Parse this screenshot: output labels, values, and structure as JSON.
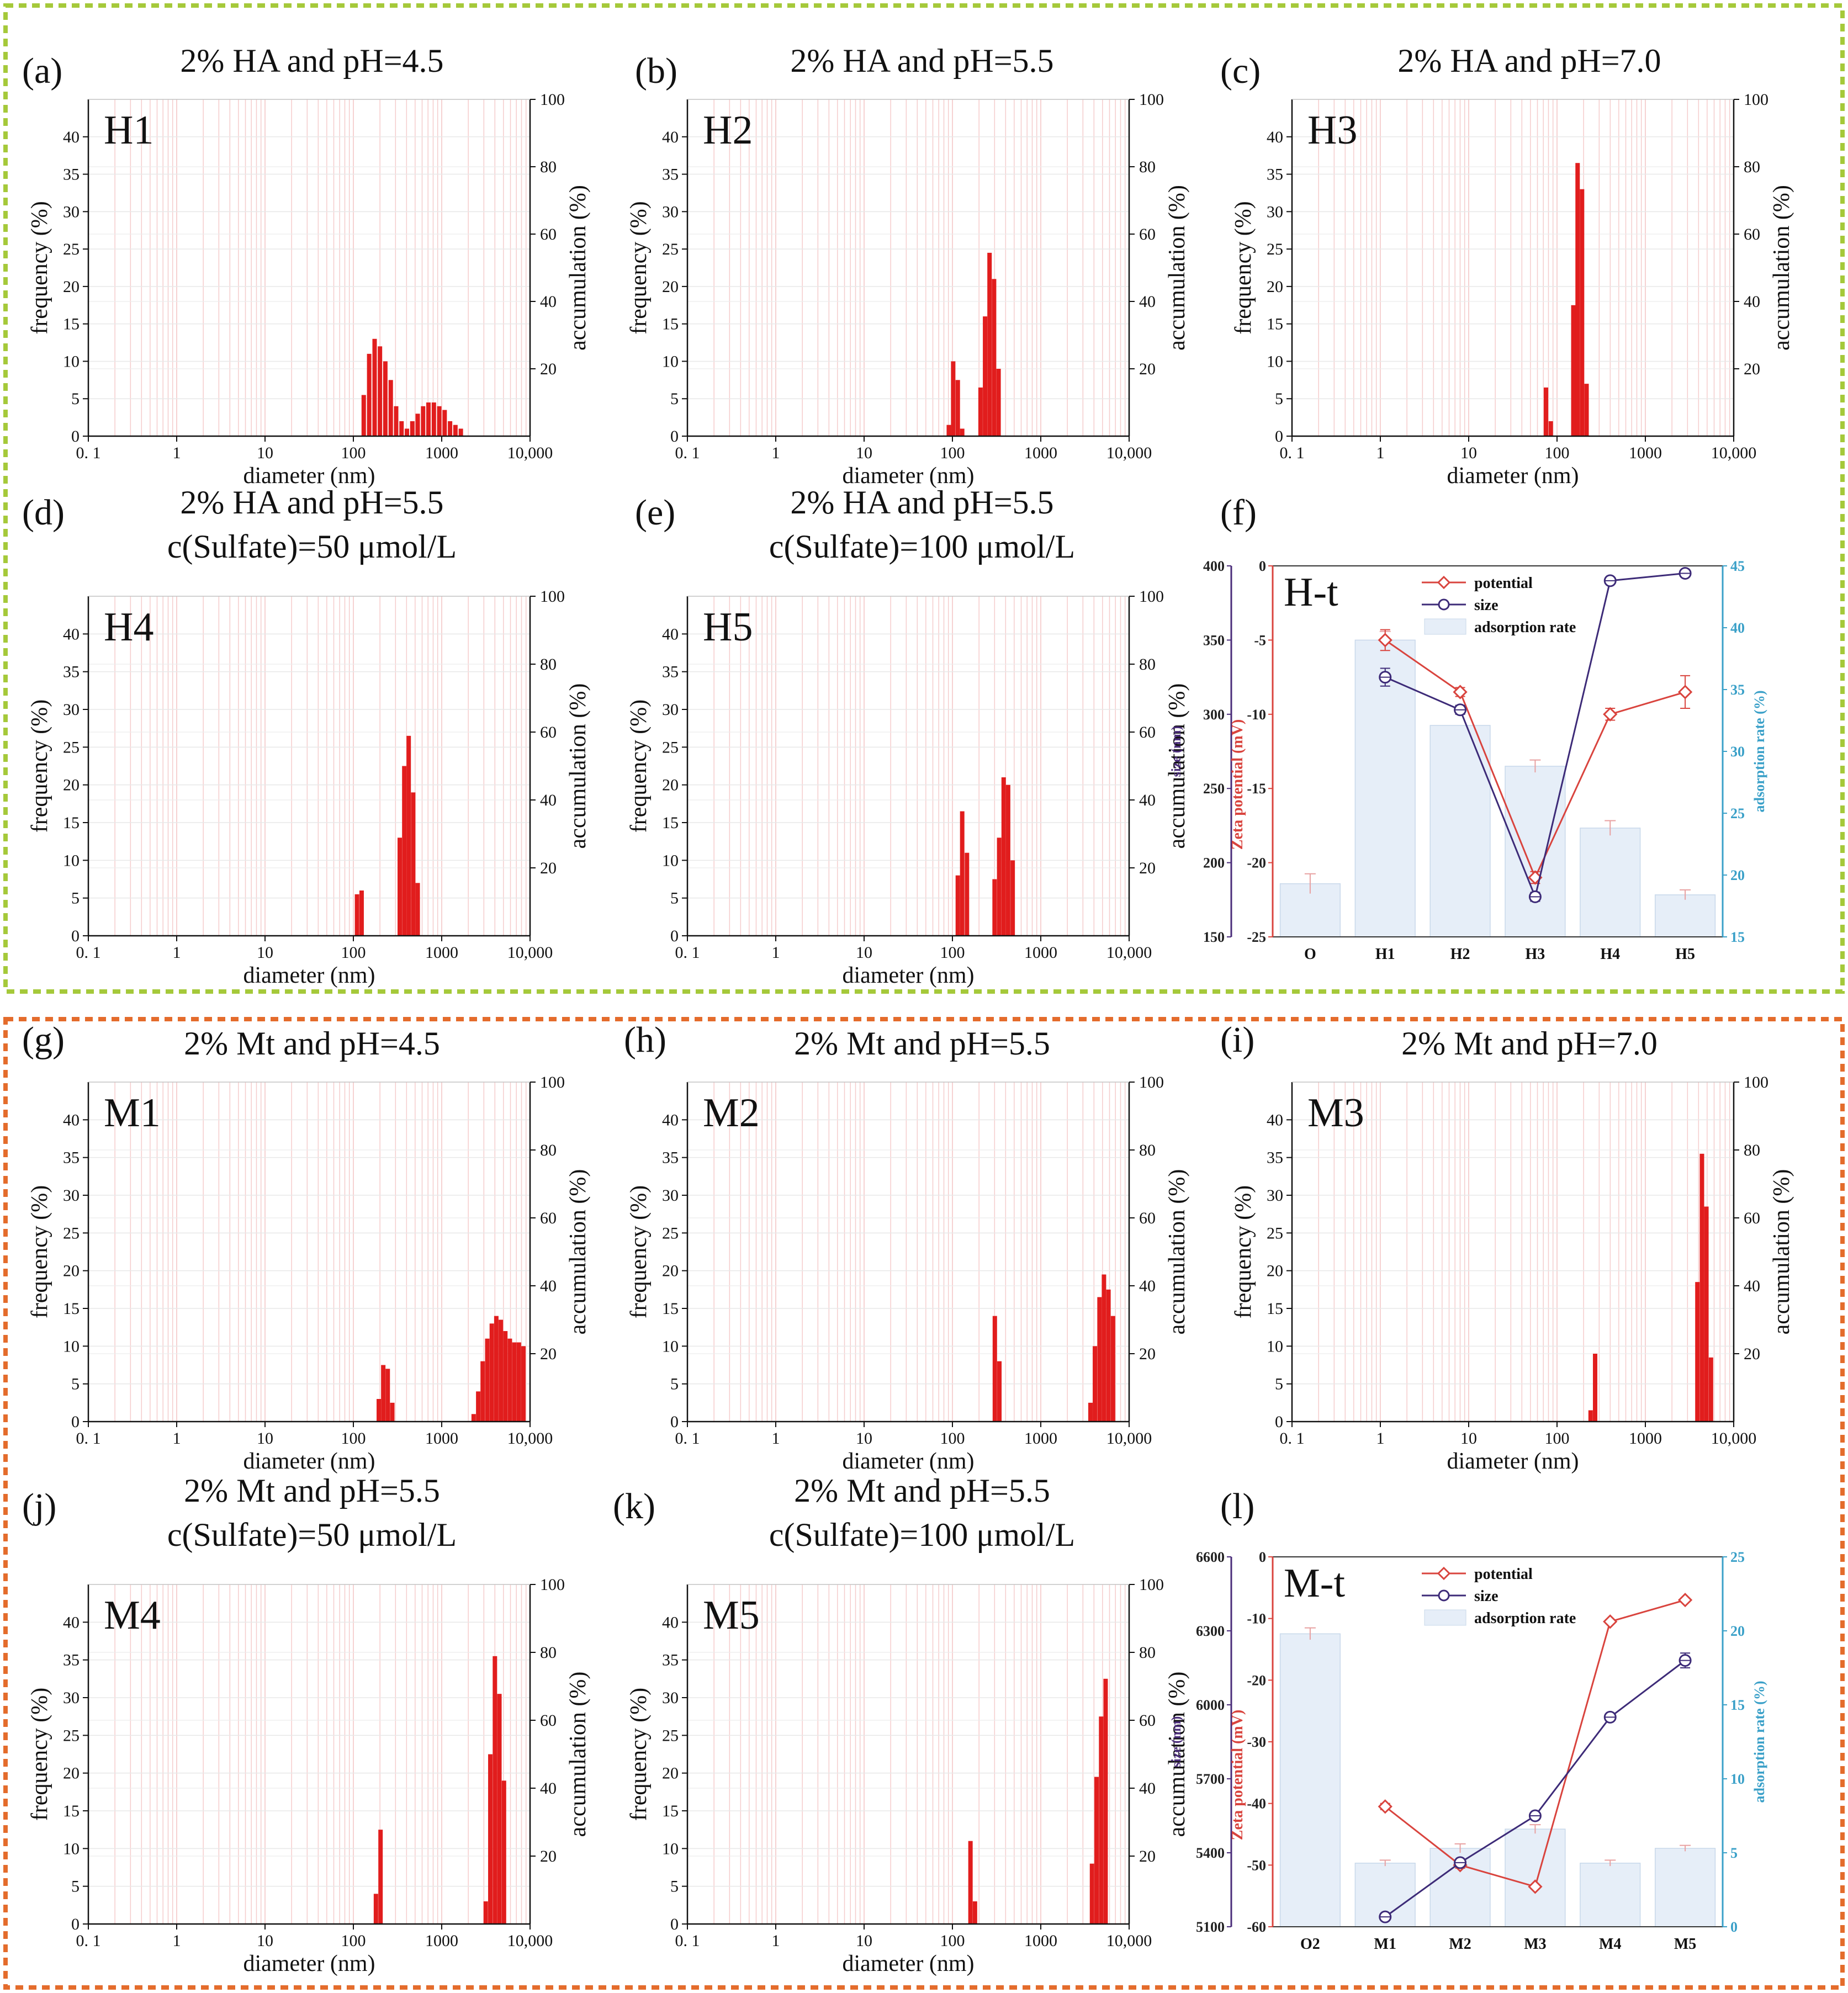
{
  "figure": {
    "frame_colors": {
      "HA": "#a5c93a",
      "Mt": "#e46c2c"
    }
  },
  "chart_data": [
    {
      "type": "bar",
      "panel": "(a)",
      "id": "H1",
      "title": "2% HA  and pH=4.5",
      "xlabel": "diameter (nm)",
      "ylabel": "frequency (%)",
      "y2label": "accumulation (%)",
      "xscale": "log",
      "xlim": [
        0.1,
        10000
      ],
      "ylim": [
        0,
        45
      ],
      "y2lim": [
        0,
        100
      ],
      "xticks": [
        "0. 1",
        "1",
        "10",
        "100",
        "1000",
        "10,000"
      ],
      "yticks": [
        0,
        5,
        10,
        15,
        20,
        25,
        30,
        35,
        40
      ],
      "y2ticks": [
        20,
        40,
        60,
        80,
        100
      ],
      "bars": [
        {
          "x": 131,
          "y": 5.5
        },
        {
          "x": 151,
          "y": 11
        },
        {
          "x": 174,
          "y": 13
        },
        {
          "x": 200,
          "y": 12
        },
        {
          "x": 230,
          "y": 10
        },
        {
          "x": 265,
          "y": 7.5
        },
        {
          "x": 305,
          "y": 4
        },
        {
          "x": 351,
          "y": 2
        },
        {
          "x": 404,
          "y": 1
        },
        {
          "x": 465,
          "y": 2
        },
        {
          "x": 535,
          "y": 3
        },
        {
          "x": 616,
          "y": 4
        },
        {
          "x": 708,
          "y": 4.5
        },
        {
          "x": 815,
          "y": 4.5
        },
        {
          "x": 938,
          "y": 4
        },
        {
          "x": 1080,
          "y": 3.5
        },
        {
          "x": 1243,
          "y": 2
        },
        {
          "x": 1430,
          "y": 1.5
        },
        {
          "x": 1646,
          "y": 1
        }
      ]
    },
    {
      "type": "bar",
      "panel": "(b)",
      "id": "H2",
      "title": "2% HA  and pH=5.5",
      "xlabel": "diameter (nm)",
      "ylabel": "frequency (%)",
      "y2label": "accumulation (%)",
      "xscale": "log",
      "xlim": [
        0.1,
        10000
      ],
      "ylim": [
        0,
        45
      ],
      "y2lim": [
        0,
        100
      ],
      "xticks": [
        "0. 1",
        "1",
        "10",
        "100",
        "1000",
        "10,000"
      ],
      "yticks": [
        0,
        5,
        10,
        15,
        20,
        25,
        30,
        35,
        40
      ],
      "y2ticks": [
        20,
        40,
        60,
        80,
        100
      ],
      "bars": [
        {
          "x": 91,
          "y": 1.5
        },
        {
          "x": 102,
          "y": 10
        },
        {
          "x": 115,
          "y": 7.5
        },
        {
          "x": 129,
          "y": 1
        },
        {
          "x": 208,
          "y": 6.5
        },
        {
          "x": 234,
          "y": 16
        },
        {
          "x": 263,
          "y": 24.5
        },
        {
          "x": 296,
          "y": 21
        },
        {
          "x": 333,
          "y": 9
        }
      ]
    },
    {
      "type": "bar",
      "panel": "(c)",
      "id": "H3",
      "title": "2% HA  and pH=7.0",
      "xlabel": "diameter (nm)",
      "ylabel": "frequency (%)",
      "y2label": "accumulation (%)",
      "xscale": "log",
      "xlim": [
        0.1,
        10000
      ],
      "ylim": [
        0,
        45
      ],
      "y2lim": [
        0,
        100
      ],
      "xticks": [
        "0. 1",
        "1",
        "10",
        "100",
        "1000",
        "10,000"
      ],
      "yticks": [
        0,
        5,
        10,
        15,
        20,
        25,
        30,
        35,
        40
      ],
      "y2ticks": [
        20,
        40,
        60,
        80,
        100
      ],
      "bars": [
        {
          "x": 75,
          "y": 6.5
        },
        {
          "x": 85,
          "y": 2
        },
        {
          "x": 153,
          "y": 17.5
        },
        {
          "x": 171,
          "y": 36.5
        },
        {
          "x": 192,
          "y": 33
        },
        {
          "x": 216,
          "y": 7
        }
      ]
    },
    {
      "type": "bar",
      "panel": "(d)",
      "id": "H4",
      "title": "2% HA  and pH=5.5",
      "subtitle": "c(Sulfate)=50 μmol/L",
      "xlabel": "diameter (nm)",
      "ylabel": "frequency (%)",
      "y2label": "accumulation (%)",
      "xscale": "log",
      "xlim": [
        0.1,
        10000
      ],
      "ylim": [
        0,
        45
      ],
      "y2lim": [
        0,
        100
      ],
      "xticks": [
        "0. 1",
        "1",
        "10",
        "100",
        "1000",
        "10,000"
      ],
      "yticks": [
        0,
        5,
        10,
        15,
        20,
        25,
        30,
        35,
        40
      ],
      "y2ticks": [
        20,
        40,
        60,
        80,
        100
      ],
      "bars": [
        {
          "x": 110,
          "y": 5.5
        },
        {
          "x": 124,
          "y": 6
        },
        {
          "x": 335,
          "y": 13
        },
        {
          "x": 377,
          "y": 22.5
        },
        {
          "x": 423,
          "y": 26.5
        },
        {
          "x": 476,
          "y": 19
        },
        {
          "x": 535,
          "y": 7
        }
      ]
    },
    {
      "type": "bar",
      "panel": "(e)",
      "id": "H5",
      "title": "2% HA  and pH=5.5",
      "subtitle": "c(Sulfate)=100 μmol/L",
      "xlabel": "diameter (nm)",
      "ylabel": "frequency (%)",
      "y2label": "accumulation (%)",
      "xscale": "log",
      "xlim": [
        0.1,
        10000
      ],
      "ylim": [
        0,
        45
      ],
      "y2lim": [
        0,
        100
      ],
      "xticks": [
        "0. 1",
        "1",
        "10",
        "100",
        "1000",
        "10,000"
      ],
      "yticks": [
        0,
        5,
        10,
        15,
        20,
        25,
        30,
        35,
        40
      ],
      "y2ticks": [
        20,
        40,
        60,
        80,
        100
      ],
      "bars": [
        {
          "x": 115,
          "y": 8
        },
        {
          "x": 129,
          "y": 16.5
        },
        {
          "x": 146,
          "y": 11
        },
        {
          "x": 300,
          "y": 7.5
        },
        {
          "x": 338,
          "y": 13
        },
        {
          "x": 380,
          "y": 21
        },
        {
          "x": 427,
          "y": 20
        },
        {
          "x": 481,
          "y": 10
        }
      ]
    },
    {
      "type": "combo",
      "panel": "(f)",
      "id": "H-t",
      "categories": [
        "O",
        "H1",
        "H2",
        "H3",
        "H4",
        "H5"
      ],
      "series": [
        {
          "name": "potential",
          "kind": "line",
          "axis": "zeta",
          "color": "#d9443e",
          "values": [
            null,
            -5,
            -8.5,
            -21,
            -10,
            -8.5
          ],
          "err": [
            0,
            0.7,
            0.3,
            0.4,
            0.4,
            1.1
          ]
        },
        {
          "name": "size",
          "kind": "line",
          "axis": "size",
          "color": "#3d2b78",
          "values": [
            null,
            325,
            303,
            177,
            390,
            395
          ],
          "err": [
            0,
            6,
            3,
            3,
            2,
            2
          ]
        },
        {
          "name": "adsorption rate",
          "kind": "bar",
          "axis": "rate",
          "color": "#e6eef8",
          "values": [
            19.3,
            39,
            32.1,
            28.8,
            23.8,
            18.4
          ],
          "err": [
            0.8,
            0.7,
            0,
            0.5,
            0.6,
            0.4
          ]
        }
      ],
      "axes": {
        "size": {
          "label": "size (nm)",
          "lim": [
            150,
            400
          ],
          "ticks": [
            150,
            200,
            250,
            300,
            350,
            400
          ],
          "color": "#4a2c7a"
        },
        "zeta": {
          "label": "Zeta potential (mV)",
          "lim": [
            -25,
            0
          ],
          "ticks": [
            0,
            -5,
            -10,
            -15,
            -20,
            -25
          ],
          "color": "#d9443e"
        },
        "rate": {
          "label": "adsorption rate (%)",
          "lim": [
            15,
            45
          ],
          "ticks": [
            15,
            20,
            25,
            30,
            35,
            40,
            45
          ],
          "color": "#3aa0c8"
        }
      },
      "legend_position": "top-center"
    },
    {
      "type": "bar",
      "panel": "(g)",
      "id": "M1",
      "title": "2% Mt and pH=4.5",
      "xlabel": "diameter (nm)",
      "ylabel": "frequency (%)",
      "y2label": "accumulation (%)",
      "xscale": "log",
      "xlim": [
        0.1,
        10000
      ],
      "ylim": [
        0,
        45
      ],
      "y2lim": [
        0,
        100
      ],
      "xticks": [
        "0. 1",
        "1",
        "10",
        "100",
        "1000",
        "10,000"
      ],
      "yticks": [
        0,
        5,
        10,
        15,
        20,
        25,
        30,
        35,
        40
      ],
      "y2ticks": [
        20,
        40,
        60,
        80,
        100
      ],
      "bars": [
        {
          "x": 194,
          "y": 3
        },
        {
          "x": 218,
          "y": 7.5
        },
        {
          "x": 245,
          "y": 7
        },
        {
          "x": 276,
          "y": 2.5
        },
        {
          "x": 2300,
          "y": 1
        },
        {
          "x": 2590,
          "y": 4
        },
        {
          "x": 2910,
          "y": 8
        },
        {
          "x": 3280,
          "y": 11
        },
        {
          "x": 3690,
          "y": 13
        },
        {
          "x": 4150,
          "y": 14
        },
        {
          "x": 4670,
          "y": 13.5
        },
        {
          "x": 5250,
          "y": 12
        },
        {
          "x": 5910,
          "y": 11
        },
        {
          "x": 6650,
          "y": 10.5
        },
        {
          "x": 7480,
          "y": 10.5
        },
        {
          "x": 8410,
          "y": 10
        }
      ]
    },
    {
      "type": "bar",
      "panel": "(h)",
      "id": "M2",
      "title": "2% Mt  and pH=5.5",
      "xlabel": "diameter (nm)",
      "ylabel": "frequency (%)",
      "y2label": "accumulation (%)",
      "xscale": "log",
      "xlim": [
        0.1,
        10000
      ],
      "ylim": [
        0,
        45
      ],
      "y2lim": [
        0,
        100
      ],
      "xticks": [
        "0. 1",
        "1",
        "10",
        "100",
        "1000",
        "10,000"
      ],
      "yticks": [
        0,
        5,
        10,
        15,
        20,
        25,
        30,
        35,
        40
      ],
      "y2ticks": [
        20,
        40,
        60,
        80,
        100
      ],
      "bars": [
        {
          "x": 302,
          "y": 14
        },
        {
          "x": 340,
          "y": 8
        },
        {
          "x": 3650,
          "y": 2.5
        },
        {
          "x": 4100,
          "y": 10
        },
        {
          "x": 4620,
          "y": 16.5
        },
        {
          "x": 5190,
          "y": 19.5
        },
        {
          "x": 5840,
          "y": 17.5
        },
        {
          "x": 6570,
          "y": 14
        }
      ]
    },
    {
      "type": "bar",
      "panel": "(i)",
      "id": "M3",
      "title": "2% Mt  and pH=7.0",
      "xlabel": "diameter (nm)",
      "ylabel": "frequency (%)",
      "y2label": "accumulation (%)",
      "xscale": "log",
      "xlim": [
        0.1,
        10000
      ],
      "ylim": [
        0,
        45
      ],
      "y2lim": [
        0,
        100
      ],
      "xticks": [
        "0. 1",
        "1",
        "10",
        "100",
        "1000",
        "10,000"
      ],
      "yticks": [
        0,
        5,
        10,
        15,
        20,
        25,
        30,
        35,
        40
      ],
      "y2ticks": [
        20,
        40,
        60,
        80,
        100
      ],
      "bars": [
        {
          "x": 240,
          "y": 1.5
        },
        {
          "x": 270,
          "y": 9
        },
        {
          "x": 3880,
          "y": 18.5
        },
        {
          "x": 4370,
          "y": 35.5
        },
        {
          "x": 4910,
          "y": 28.5
        },
        {
          "x": 5530,
          "y": 8.5
        }
      ]
    },
    {
      "type": "bar",
      "panel": "(j)",
      "id": "M4",
      "title": "2% Mt  and pH=5.5",
      "subtitle": "c(Sulfate)=50 μmol/L",
      "xlabel": "diameter (nm)",
      "ylabel": "frequency (%)",
      "y2label": "accumulation (%)",
      "xscale": "log",
      "xlim": [
        0.1,
        10000
      ],
      "ylim": [
        0,
        45
      ],
      "y2lim": [
        0,
        100
      ],
      "xticks": [
        "0. 1",
        "1",
        "10",
        "100",
        "1000",
        "10,000"
      ],
      "yticks": [
        0,
        5,
        10,
        15,
        20,
        25,
        30,
        35,
        40
      ],
      "y2ticks": [
        20,
        40,
        60,
        80,
        100
      ],
      "bars": [
        {
          "x": 180,
          "y": 4
        },
        {
          "x": 203,
          "y": 12.5
        },
        {
          "x": 3150,
          "y": 3
        },
        {
          "x": 3550,
          "y": 22.5
        },
        {
          "x": 4000,
          "y": 35.5
        },
        {
          "x": 4500,
          "y": 30.5
        },
        {
          "x": 5070,
          "y": 19
        }
      ]
    },
    {
      "type": "bar",
      "panel": "(k)",
      "id": "M5",
      "title": "2% Mt  and pH=5.5",
      "subtitle": "c(Sulfate)=100 μmol/L",
      "xlabel": "diameter (nm)",
      "ylabel": "frequency (%)",
      "y2label": "accumulation (%)",
      "xscale": "log",
      "xlim": [
        0.1,
        10000
      ],
      "ylim": [
        0,
        45
      ],
      "y2lim": [
        0,
        100
      ],
      "xticks": [
        "0. 1",
        "1",
        "10",
        "100",
        "1000",
        "10,000"
      ],
      "yticks": [
        0,
        5,
        10,
        15,
        20,
        25,
        30,
        35,
        40
      ],
      "y2ticks": [
        20,
        40,
        60,
        80,
        100
      ],
      "bars": [
        {
          "x": 160,
          "y": 11
        },
        {
          "x": 180,
          "y": 3
        },
        {
          "x": 3800,
          "y": 8
        },
        {
          "x": 4280,
          "y": 19.5
        },
        {
          "x": 4820,
          "y": 27.5
        },
        {
          "x": 5420,
          "y": 32.5
        }
      ]
    },
    {
      "type": "combo",
      "panel": "(l)",
      "id": "M-t",
      "categories": [
        "O2",
        "M1",
        "M2",
        "M3",
        "M4",
        "M5"
      ],
      "series": [
        {
          "name": "potential",
          "kind": "line",
          "axis": "zeta",
          "color": "#d9443e",
          "values": [
            null,
            -40.5,
            -50,
            -53.5,
            -10.5,
            -7
          ],
          "err": [
            0,
            0.5,
            0.5,
            0.3,
            0.3,
            0.3
          ]
        },
        {
          "name": "size",
          "kind": "line",
          "axis": "size",
          "color": "#3d2b78",
          "values": [
            null,
            5140,
            5360,
            5550,
            5950,
            6180
          ],
          "err": [
            0,
            5,
            8,
            5,
            5,
            30
          ]
        },
        {
          "name": "adsorption rate",
          "kind": "bar",
          "axis": "rate",
          "color": "#e6eef8",
          "values": [
            19.8,
            4.3,
            5.3,
            6.6,
            4.3,
            5.3
          ],
          "err": [
            0.4,
            0.2,
            0.3,
            0.3,
            0.2,
            0.2
          ]
        }
      ],
      "axes": {
        "size": {
          "label": "size (nm)",
          "lim": [
            5100,
            6600
          ],
          "ticks": [
            5100,
            5400,
            5700,
            6000,
            6300,
            6600
          ],
          "color": "#4a2c7a"
        },
        "zeta": {
          "label": "Zeta potential (mV)",
          "lim": [
            -60,
            0
          ],
          "ticks": [
            0,
            -10,
            -20,
            -30,
            -40,
            -50,
            -60
          ],
          "color": "#d9443e"
        },
        "rate": {
          "label": "adsorption rate (%)",
          "lim": [
            0,
            25
          ],
          "ticks": [
            0,
            5,
            10,
            15,
            20,
            25
          ],
          "color": "#3aa0c8"
        }
      },
      "legend_position": "top-center"
    }
  ]
}
